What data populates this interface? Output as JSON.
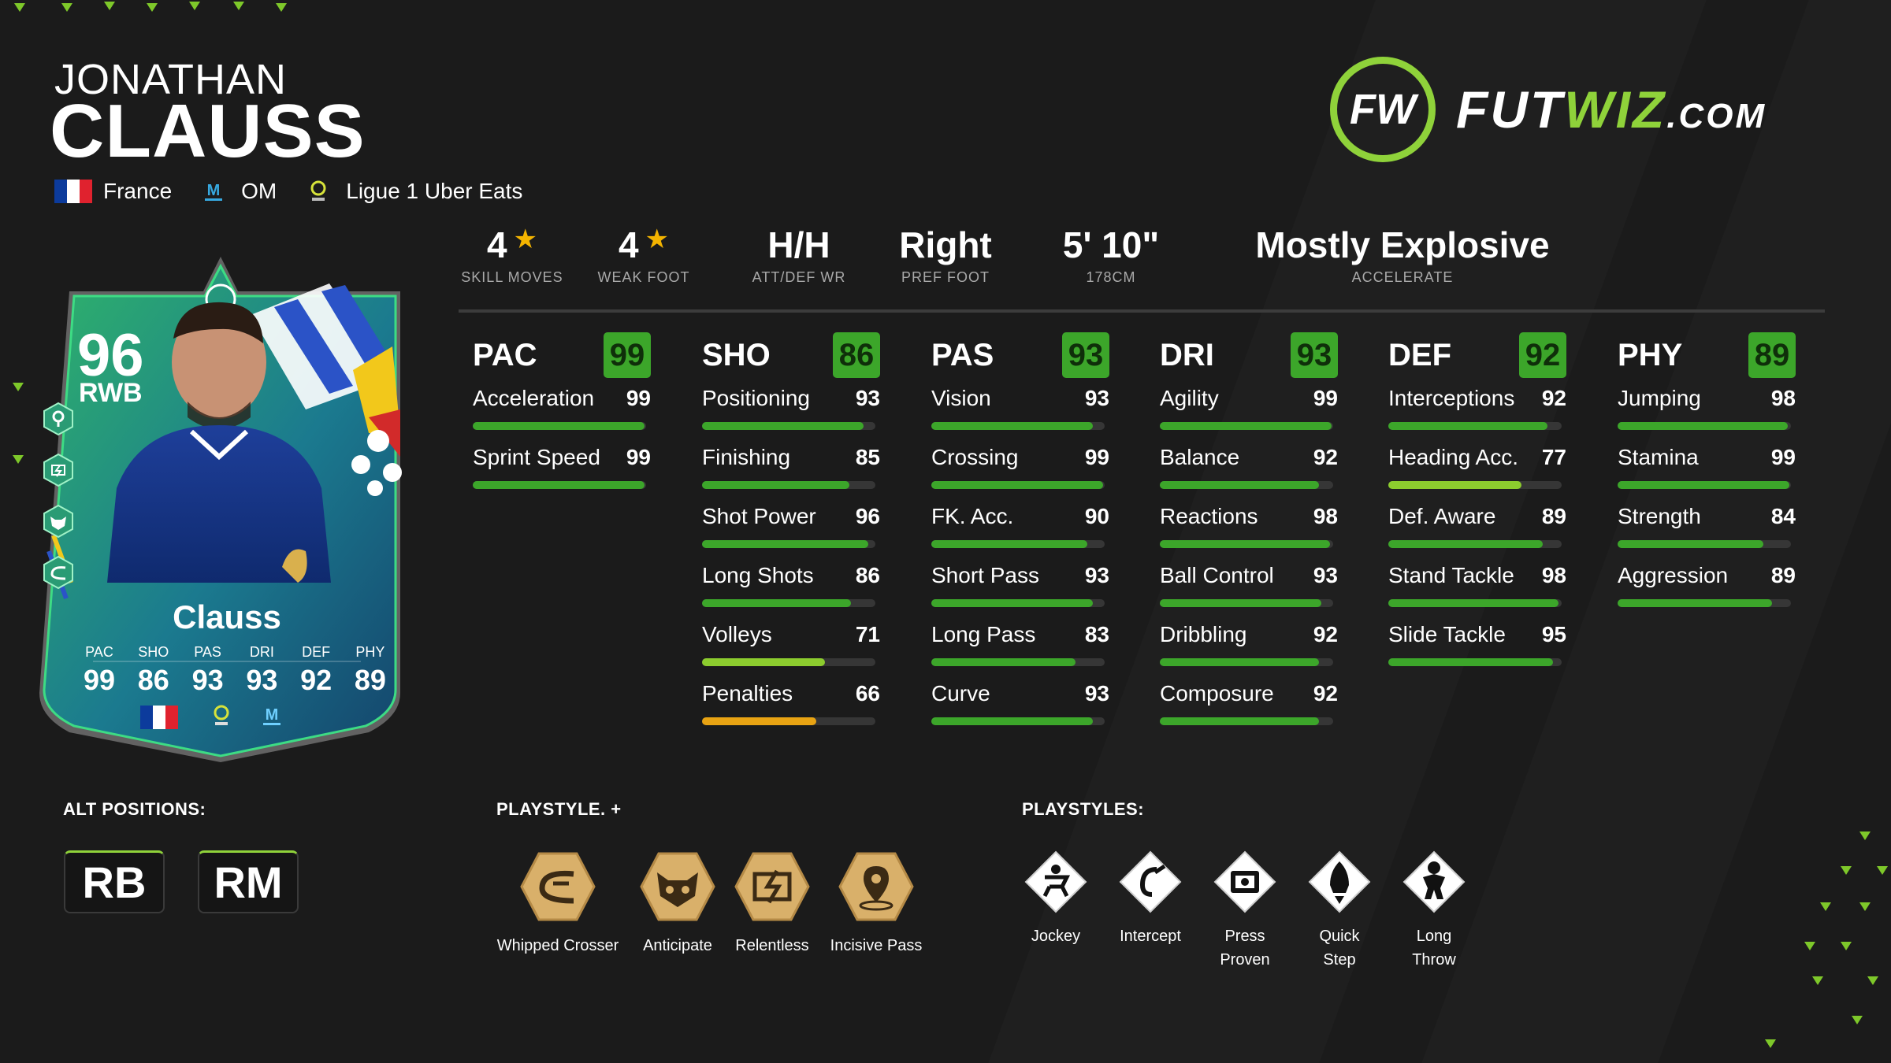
{
  "player": {
    "first_name": "JONATHAN",
    "last_name": "CLAUSS",
    "nation": "France",
    "club": "OM",
    "league": "Ligue 1 Uber Eats"
  },
  "logo": {
    "mark": "FW",
    "text_a": "FUT",
    "text_b": "WIZ",
    "text_c": ".COM",
    "accent": "#8fd23a"
  },
  "info": [
    {
      "value": "4",
      "star": "★",
      "label": "SKILL MOVES"
    },
    {
      "value": "4",
      "star": "★",
      "label": "WEAK FOOT"
    },
    {
      "value": "H/H",
      "label": "ATT/DEF WR"
    },
    {
      "value": "Right",
      "label": "PREF FOOT"
    },
    {
      "value": "5' 10\"",
      "label": "178CM"
    },
    {
      "value": "Mostly Explosive",
      "label": "ACCELERATE"
    }
  ],
  "card": {
    "rating": "96",
    "position": "RWB",
    "name": "Clauss",
    "stat_labels": [
      "PAC",
      "SHO",
      "PAS",
      "DRI",
      "DEF",
      "PHY"
    ],
    "stat_values": [
      "99",
      "86",
      "93",
      "93",
      "92",
      "89"
    ],
    "chip_icons": [
      "incisive-pass-icon",
      "relentless-icon",
      "anticipate-icon",
      "whipped-crosser-icon"
    ]
  },
  "stats": [
    {
      "cat": "PAC",
      "total": "99",
      "items": [
        {
          "name": "Acceleration",
          "value": 99
        },
        {
          "name": "Sprint Speed",
          "value": 99
        }
      ]
    },
    {
      "cat": "SHO",
      "total": "86",
      "items": [
        {
          "name": "Positioning",
          "value": 93
        },
        {
          "name": "Finishing",
          "value": 85
        },
        {
          "name": "Shot Power",
          "value": 96
        },
        {
          "name": "Long Shots",
          "value": 86
        },
        {
          "name": "Volleys",
          "value": 71
        },
        {
          "name": "Penalties",
          "value": 66
        }
      ]
    },
    {
      "cat": "PAS",
      "total": "93",
      "items": [
        {
          "name": "Vision",
          "value": 93
        },
        {
          "name": "Crossing",
          "value": 99
        },
        {
          "name": "FK. Acc.",
          "value": 90
        },
        {
          "name": "Short Pass",
          "value": 93
        },
        {
          "name": "Long Pass",
          "value": 83
        },
        {
          "name": "Curve",
          "value": 93
        }
      ]
    },
    {
      "cat": "DRI",
      "total": "93",
      "items": [
        {
          "name": "Agility",
          "value": 99
        },
        {
          "name": "Balance",
          "value": 92
        },
        {
          "name": "Reactions",
          "value": 98
        },
        {
          "name": "Ball Control",
          "value": 93
        },
        {
          "name": "Dribbling",
          "value": 92
        },
        {
          "name": "Composure",
          "value": 92
        }
      ]
    },
    {
      "cat": "DEF",
      "total": "92",
      "items": [
        {
          "name": "Interceptions",
          "value": 92
        },
        {
          "name": "Heading Acc.",
          "value": 77
        },
        {
          "name": "Def. Aware",
          "value": 89
        },
        {
          "name": "Stand Tackle",
          "value": 98
        },
        {
          "name": "Slide Tackle",
          "value": 95
        }
      ]
    },
    {
      "cat": "PHY",
      "total": "89",
      "items": [
        {
          "name": "Jumping",
          "value": 98
        },
        {
          "name": "Stamina",
          "value": 99
        },
        {
          "name": "Strength",
          "value": 84
        },
        {
          "name": "Aggression",
          "value": 89
        }
      ]
    }
  ],
  "bar_colors": {
    "high": "#3ca62a",
    "mid": "#8ccc2e",
    "low": "#e8a313",
    "track": "#363636"
  },
  "bottom": {
    "alt_title": "ALT POSITIONS:",
    "alt_positions": [
      "RB",
      "RM"
    ],
    "plus_title": "PLAYSTYLE. +",
    "playstyles_plus": [
      {
        "label": "Whipped Crosser",
        "icon": "whipped-crosser-icon"
      },
      {
        "label": "Anticipate",
        "icon": "anticipate-icon"
      },
      {
        "label": "Relentless",
        "icon": "relentless-icon"
      },
      {
        "label": "Incisive Pass",
        "icon": "incisive-pass-icon"
      }
    ],
    "ps_title": "PLAYSTYLES:",
    "playstyles": [
      {
        "label": "Jockey",
        "icon": "jockey-icon"
      },
      {
        "label": "Intercept",
        "icon": "intercept-icon"
      },
      {
        "label": "Press\nProven",
        "icon": "press-proven-icon"
      },
      {
        "label": "Quick\nStep",
        "icon": "quick-step-icon"
      },
      {
        "label": "Long\nThrow",
        "icon": "long-throw-icon"
      }
    ]
  }
}
